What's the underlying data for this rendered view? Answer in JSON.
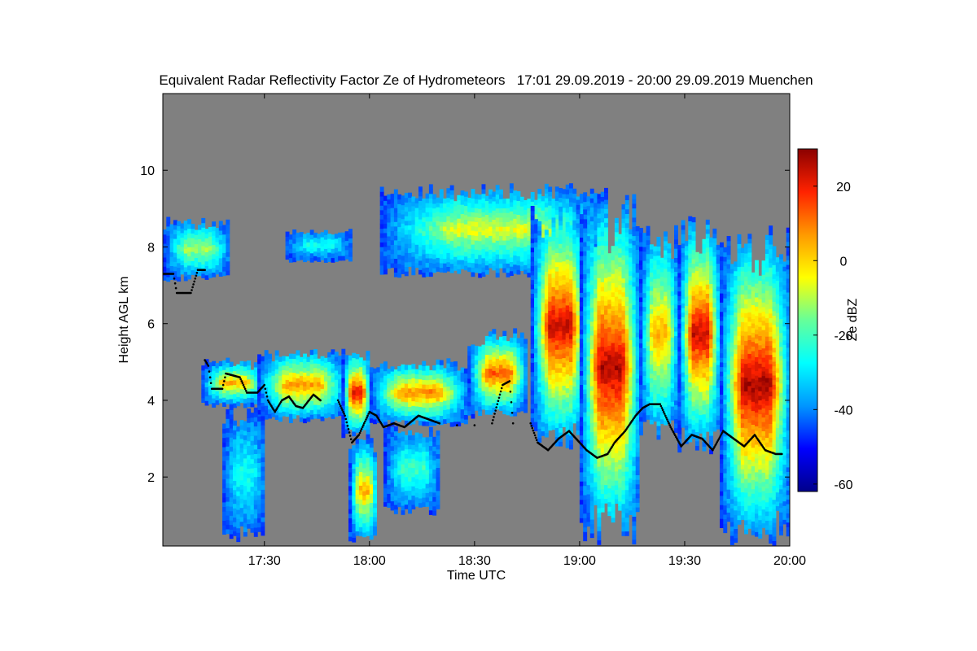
{
  "chart_data": {
    "type": "heatmap",
    "title": "Equivalent Radar Reflectivity Factor Ze of Hydrometeors   17:01 29.09.2019 - 20:00 29.09.2019 Muenchen",
    "xlabel": "Time UTC",
    "ylabel": "Height AGL km",
    "colorbar_label": "Ze dBZ",
    "x_start": "17:01",
    "x_end": "20:00",
    "xlim_minutes_after_17": [
      1,
      180
    ],
    "ylim_km": [
      0.2,
      12.0
    ],
    "x_ticks": [
      {
        "label": "17:30",
        "value": 30
      },
      {
        "label": "18:00",
        "value": 60
      },
      {
        "label": "18:30",
        "value": 90
      },
      {
        "label": "19:00",
        "value": 120
      },
      {
        "label": "19:30",
        "value": 150
      },
      {
        "label": "20:00",
        "value": 180
      }
    ],
    "y_ticks": [
      {
        "label": "2",
        "value": 2
      },
      {
        "label": "4",
        "value": 4
      },
      {
        "label": "6",
        "value": 6
      },
      {
        "label": "8",
        "value": 8
      },
      {
        "label": "10",
        "value": 10
      }
    ],
    "colorbar_range": [
      -62,
      30
    ],
    "colorbar_ticks": [
      {
        "label": "20",
        "value": 20
      },
      {
        "label": "0",
        "value": 0
      },
      {
        "label": "-20",
        "value": -20
      },
      {
        "label": "-40",
        "value": -40
      },
      {
        "label": "-60",
        "value": -60
      }
    ],
    "background_color": "#808080",
    "colormap": [
      "#00008b",
      "#0000ff",
      "#0096ff",
      "#00ffff",
      "#66ff99",
      "#ffff00",
      "#ff9900",
      "#ff2200",
      "#8b0000"
    ],
    "echo_regions": [
      {
        "t_start": 1,
        "t_end": 20,
        "base_km": 7.1,
        "top_km": 8.7,
        "peak_dbz": -10
      },
      {
        "t_start": 36,
        "t_end": 55,
        "base_km": 7.6,
        "top_km": 8.4,
        "peak_dbz": -25
      },
      {
        "t_start": 63,
        "t_end": 128,
        "base_km": 7.2,
        "top_km": 9.6,
        "peak_dbz": -5
      },
      {
        "t_start": 12,
        "t_end": 30,
        "base_km": 3.8,
        "top_km": 5.0,
        "peak_dbz": 5
      },
      {
        "t_start": 28,
        "t_end": 53,
        "base_km": 3.4,
        "top_km": 5.3,
        "peak_dbz": 8
      },
      {
        "t_start": 52,
        "t_end": 60,
        "base_km": 3.0,
        "top_km": 5.3,
        "peak_dbz": 22
      },
      {
        "t_start": 60,
        "t_end": 88,
        "base_km": 3.3,
        "top_km": 5.0,
        "peak_dbz": 10
      },
      {
        "t_start": 88,
        "t_end": 105,
        "base_km": 3.5,
        "top_km": 5.8,
        "peak_dbz": 15
      },
      {
        "t_start": 106,
        "t_end": 122,
        "base_km": 2.6,
        "top_km": 9.2,
        "peak_dbz": 25
      },
      {
        "t_start": 120,
        "t_end": 137,
        "base_km": 0.2,
        "top_km": 9.4,
        "peak_dbz": 27
      },
      {
        "t_start": 137,
        "t_end": 148,
        "base_km": 2.8,
        "top_km": 8.6,
        "peak_dbz": 5
      },
      {
        "t_start": 148,
        "t_end": 160,
        "base_km": 2.6,
        "top_km": 8.8,
        "peak_dbz": 25
      },
      {
        "t_start": 160,
        "t_end": 180,
        "base_km": 0.2,
        "top_km": 8.5,
        "peak_dbz": 28
      },
      {
        "t_start": 18,
        "t_end": 30,
        "base_km": 0.3,
        "top_km": 3.8,
        "peak_dbz": -25
      },
      {
        "t_start": 54,
        "t_end": 62,
        "base_km": 0.2,
        "top_km": 3.0,
        "peak_dbz": 5
      },
      {
        "t_start": 64,
        "t_end": 80,
        "base_km": 1.0,
        "top_km": 3.3,
        "peak_dbz": -20
      }
    ],
    "cloud_base_km": [
      {
        "t": 1,
        "h": 7.3
      },
      {
        "t": 4,
        "h": 7.3
      },
      {
        "t": 5,
        "h": 6.8
      },
      {
        "t": 9,
        "h": 6.8
      },
      {
        "t": 11,
        "h": 7.4
      },
      {
        "t": 13,
        "h": 7.4
      },
      {
        "t": 13,
        "h": 5.05
      },
      {
        "t": 14,
        "h": 4.9
      },
      {
        "t": 15,
        "h": 4.3
      },
      {
        "t": 18,
        "h": 4.3
      },
      {
        "t": 19,
        "h": 4.7
      },
      {
        "t": 23,
        "h": 4.6
      },
      {
        "t": 25,
        "h": 4.2
      },
      {
        "t": 28,
        "h": 4.2
      },
      {
        "t": 30,
        "h": 4.4
      },
      {
        "t": 31,
        "h": 4.0
      },
      {
        "t": 33,
        "h": 3.7
      },
      {
        "t": 35,
        "h": 4.0
      },
      {
        "t": 37,
        "h": 4.1
      },
      {
        "t": 39,
        "h": 3.85
      },
      {
        "t": 41,
        "h": 3.8
      },
      {
        "t": 44,
        "h": 4.15
      },
      {
        "t": 46,
        "h": 4.0
      },
      {
        "t": 51,
        "h": 4.0
      },
      {
        "t": 53,
        "h": 3.6
      },
      {
        "t": 55,
        "h": 2.9
      },
      {
        "t": 57,
        "h": 3.1
      },
      {
        "t": 60,
        "h": 3.7
      },
      {
        "t": 62,
        "h": 3.6
      },
      {
        "t": 64,
        "h": 3.3
      },
      {
        "t": 67,
        "h": 3.4
      },
      {
        "t": 70,
        "h": 3.3
      },
      {
        "t": 74,
        "h": 3.6
      },
      {
        "t": 77,
        "h": 3.5
      },
      {
        "t": 80,
        "h": 3.4
      },
      {
        "t": 85,
        "h": 3.35
      },
      {
        "t": 90,
        "h": 3.35
      },
      {
        "t": 95,
        "h": 3.4
      },
      {
        "t": 98,
        "h": 4.4
      },
      {
        "t": 100,
        "h": 4.5
      },
      {
        "t": 101,
        "h": 3.4
      },
      {
        "t": 106,
        "h": 3.4
      },
      {
        "t": 108,
        "h": 2.9
      },
      {
        "t": 111,
        "h": 2.7
      },
      {
        "t": 114,
        "h": 3.0
      },
      {
        "t": 117,
        "h": 3.2
      },
      {
        "t": 120,
        "h": 2.9
      },
      {
        "t": 122,
        "h": 2.7
      },
      {
        "t": 125,
        "h": 2.5
      },
      {
        "t": 128,
        "h": 2.6
      },
      {
        "t": 130,
        "h": 2.9
      },
      {
        "t": 133,
        "h": 3.2
      },
      {
        "t": 136,
        "h": 3.6
      },
      {
        "t": 138,
        "h": 3.8
      },
      {
        "t": 140,
        "h": 3.9
      },
      {
        "t": 143,
        "h": 3.9
      },
      {
        "t": 146,
        "h": 3.3
      },
      {
        "t": 149,
        "h": 2.8
      },
      {
        "t": 152,
        "h": 3.1
      },
      {
        "t": 155,
        "h": 3.0
      },
      {
        "t": 158,
        "h": 2.7
      },
      {
        "t": 161,
        "h": 3.2
      },
      {
        "t": 164,
        "h": 3.0
      },
      {
        "t": 167,
        "h": 2.8
      },
      {
        "t": 170,
        "h": 3.1
      },
      {
        "t": 173,
        "h": 2.7
      },
      {
        "t": 176,
        "h": 2.6
      },
      {
        "t": 178,
        "h": 2.6
      }
    ]
  }
}
